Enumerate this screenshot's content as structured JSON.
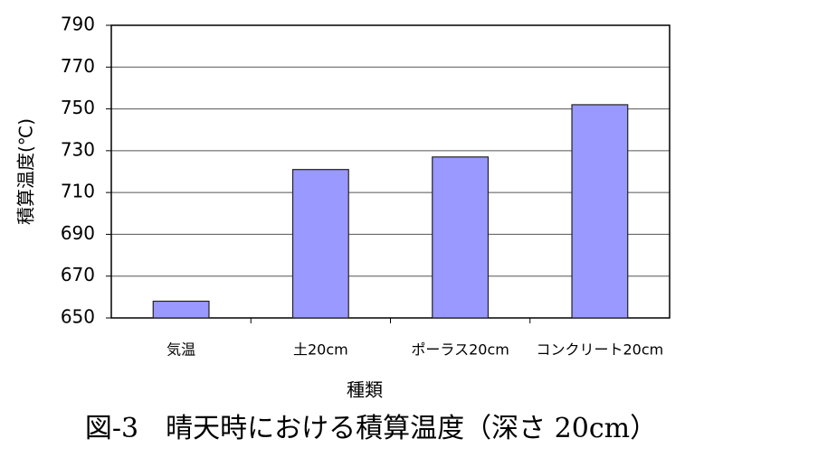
{
  "chart_data": {
    "type": "bar",
    "title": "図-3　晴天時における積算温度（深さ 20cm）",
    "x_label": "種類",
    "y_label": "積算温度(℃)",
    "categories": [
      "気温",
      "土20cm",
      "ポーラス20cm",
      "コンクリート20cm"
    ],
    "values": [
      658,
      721,
      727,
      752
    ],
    "color": "#9999ff",
    "ylim": [
      650,
      790
    ],
    "yticks": [
      650,
      670,
      690,
      710,
      730,
      750,
      770,
      790
    ],
    "grid": true
  }
}
